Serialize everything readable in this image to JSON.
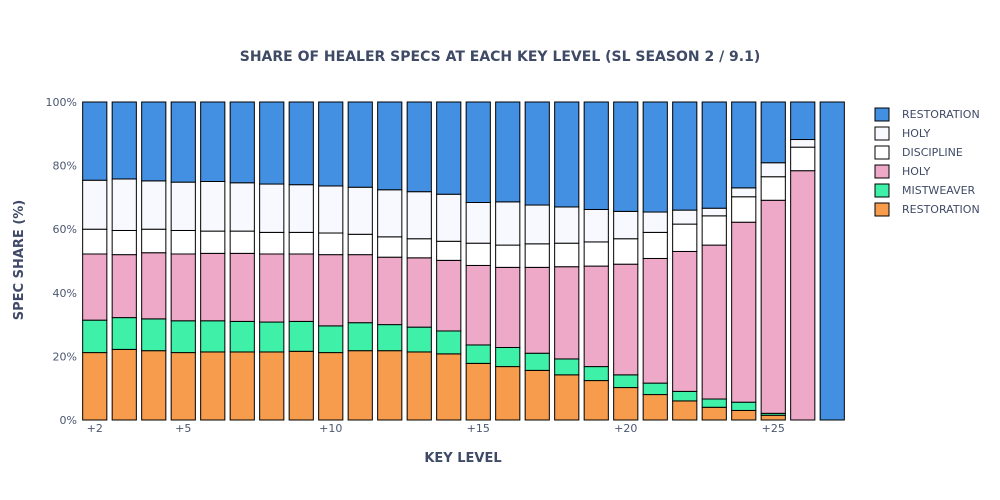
{
  "chart_data": {
    "type": "bar",
    "stacked": true,
    "title": "SHARE OF HEALER SPECS AT EACH KEY LEVEL (SL SEASON 2 / 9.1)",
    "xlabel": "KEY LEVEL",
    "ylabel": "SPEC SHARE (%)",
    "ylim": [
      0,
      100
    ],
    "y_ticks": [
      "0%",
      "20%",
      "40%",
      "60%",
      "80%",
      "100%"
    ],
    "x_tick_labels": [
      {
        "x": 2,
        "label": "+2"
      },
      {
        "x": 5,
        "label": "+5"
      },
      {
        "x": 10,
        "label": "+10"
      },
      {
        "x": 15,
        "label": "+15"
      },
      {
        "x": 20,
        "label": "+20"
      },
      {
        "x": 25,
        "label": "+25"
      }
    ],
    "x": [
      2,
      3,
      4,
      5,
      6,
      7,
      8,
      9,
      10,
      11,
      12,
      13,
      14,
      15,
      16,
      17,
      18,
      19,
      20,
      21,
      22,
      23,
      24,
      25,
      26,
      27
    ],
    "legend_position": "right",
    "series": [
      {
        "name": "RESTORATION",
        "color": "#f69c4c",
        "values": [
          21.2,
          22.2,
          21.8,
          21.2,
          21.4,
          21.4,
          21.4,
          21.6,
          21.2,
          21.8,
          21.8,
          21.4,
          20.8,
          17.8,
          16.8,
          15.6,
          14.2,
          12.4,
          10.2,
          8.0,
          6.0,
          4.0,
          3.0,
          1.5,
          0,
          0
        ]
      },
      {
        "name": "MISTWEAVER",
        "color": "#3ef0a8",
        "values": [
          10.2,
          10.0,
          10.0,
          10.0,
          9.8,
          9.6,
          9.4,
          9.4,
          8.4,
          8.8,
          8.2,
          7.8,
          7.2,
          5.8,
          6.0,
          5.4,
          5.0,
          4.4,
          4.0,
          3.6,
          3.0,
          2.6,
          2.6,
          0.6,
          0,
          0
        ]
      },
      {
        "name": "HOLY",
        "color": "#eea8c8",
        "values": [
          20.8,
          19.8,
          20.8,
          21.0,
          21.2,
          21.4,
          21.4,
          21.2,
          22.4,
          21.4,
          21.2,
          21.8,
          22.2,
          25.0,
          25.2,
          27.0,
          29.0,
          31.6,
          34.8,
          39.2,
          44.0,
          48.4,
          56.6,
          67.0,
          78.4,
          0
        ]
      },
      {
        "name": "DISCIPLINE",
        "color": "#ffffff",
        "values": [
          7.8,
          7.6,
          7.4,
          7.4,
          7.0,
          7.0,
          6.8,
          6.8,
          6.8,
          6.4,
          6.4,
          6.0,
          6.0,
          7.0,
          7.0,
          7.4,
          7.4,
          7.6,
          8.0,
          8.2,
          8.6,
          9.2,
          8.0,
          7.4,
          7.4,
          0
        ]
      },
      {
        "name": "HOLY",
        "color": "#f8f9fe",
        "values": [
          15.4,
          16.2,
          15.2,
          15.2,
          15.6,
          15.2,
          15.2,
          15.0,
          14.8,
          14.8,
          14.8,
          14.8,
          14.8,
          12.8,
          13.6,
          12.2,
          11.4,
          10.2,
          8.6,
          6.4,
          4.4,
          2.4,
          2.8,
          4.4,
          2.4,
          0
        ]
      },
      {
        "name": "RESTORATION",
        "color": "#4390e3",
        "values": [
          24.6,
          24.2,
          24.8,
          25.2,
          25.0,
          25.4,
          25.8,
          26.0,
          26.4,
          26.8,
          27.6,
          28.2,
          29.0,
          31.6,
          31.4,
          32.4,
          33.0,
          33.8,
          34.4,
          34.6,
          34.0,
          33.4,
          27.0,
          19.1,
          11.8,
          100
        ]
      }
    ]
  }
}
